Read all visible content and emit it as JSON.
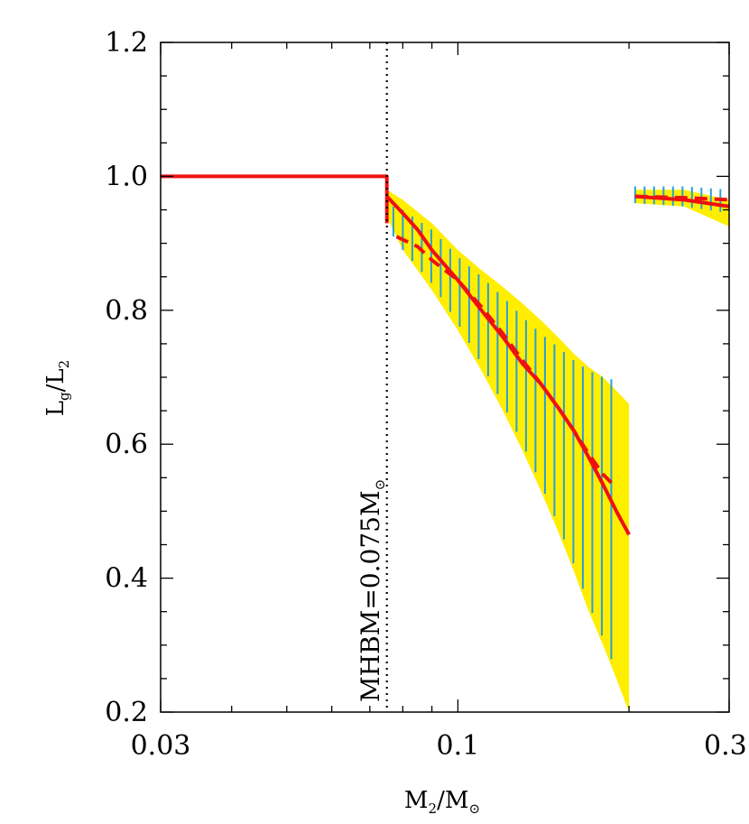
{
  "chart_data": {
    "type": "line",
    "xscale": "log",
    "xlim": [
      0.03,
      0.3
    ],
    "ylim": [
      0.2,
      1.2
    ],
    "xticks": [
      0.03,
      0.1,
      0.3
    ],
    "x_tick_labels": [
      "0.03",
      "0.1",
      "0.3"
    ],
    "yticks": [
      0.2,
      0.4,
      0.6,
      0.8,
      1.0,
      1.2
    ],
    "y_tick_labels": [
      "0.2",
      "0.4",
      "0.6",
      "0.8",
      "1.0",
      "1.2"
    ],
    "xlabel": {
      "main": "M",
      "sub": "2",
      "rest": "/M",
      "sub2": "⊙"
    },
    "ylabel": {
      "main": "L",
      "sub": "g",
      "rest": "/L",
      "sub2": "2"
    },
    "grid": false,
    "colors": {
      "band": "#ffee00",
      "hatch": "#2a9fd8",
      "line": "#ee1111",
      "axis": "#000000"
    },
    "vertical_line": {
      "x": 0.075,
      "style": "dotted",
      "label": {
        "main": "MHBM=0.075M",
        "sub": "⊙"
      }
    },
    "series": [
      {
        "style": "solid",
        "segments": [
          [
            [
              0.03,
              1.0
            ],
            [
              0.075,
              1.0
            ],
            [
              0.075,
              0.93
            ]
          ],
          [
            [
              0.075,
              0.97
            ],
            [
              0.08,
              0.945
            ],
            [
              0.085,
              0.92
            ],
            [
              0.09,
              0.89
            ],
            [
              0.1,
              0.845
            ],
            [
              0.11,
              0.8
            ],
            [
              0.12,
              0.76
            ],
            [
              0.13,
              0.72
            ],
            [
              0.14,
              0.69
            ],
            [
              0.15,
              0.655
            ],
            [
              0.16,
              0.62
            ],
            [
              0.17,
              0.58
            ],
            [
              0.18,
              0.54
            ],
            [
              0.19,
              0.5
            ],
            [
              0.2,
              0.465
            ]
          ],
          [
            [
              0.205,
              0.97
            ],
            [
              0.25,
              0.965
            ],
            [
              0.3,
              0.955
            ]
          ]
        ]
      },
      {
        "style": "dashed",
        "segments": [
          [
            [
              0.078,
              0.91
            ],
            [
              0.085,
              0.895
            ],
            [
              0.09,
              0.875
            ],
            [
              0.1,
              0.845
            ],
            [
              0.11,
              0.805
            ],
            [
              0.12,
              0.765
            ],
            [
              0.13,
              0.725
            ],
            [
              0.14,
              0.69
            ],
            [
              0.15,
              0.655
            ],
            [
              0.16,
              0.62
            ],
            [
              0.17,
              0.585
            ],
            [
              0.18,
              0.555
            ],
            [
              0.19,
              0.535
            ]
          ],
          [
            [
              0.205,
              0.97
            ],
            [
              0.25,
              0.968
            ],
            [
              0.3,
              0.965
            ]
          ]
        ]
      }
    ],
    "bands": [
      {
        "kind": "filled",
        "segments": [
          {
            "x": [
              0.075,
              0.08,
              0.09,
              0.1,
              0.11,
              0.12,
              0.13,
              0.14,
              0.15,
              0.16,
              0.17,
              0.18,
              0.19,
              0.2
            ],
            "upper": [
              0.98,
              0.965,
              0.93,
              0.89,
              0.86,
              0.835,
              0.81,
              0.785,
              0.76,
              0.735,
              0.715,
              0.7,
              0.68,
              0.66
            ],
            "lower": [
              0.94,
              0.89,
              0.83,
              0.77,
              0.71,
              0.65,
              0.59,
              0.53,
              0.47,
              0.41,
              0.35,
              0.3,
              0.25,
              0.2
            ]
          },
          {
            "x": [
              0.205,
              0.25,
              0.3
            ],
            "upper": [
              0.98,
              0.98,
              0.965
            ],
            "lower": [
              0.96,
              0.955,
              0.925
            ]
          }
        ]
      },
      {
        "kind": "hatched",
        "segments": [
          {
            "x": [
              0.077,
              0.08,
              0.09,
              0.1,
              0.11,
              0.12,
              0.13,
              0.14,
              0.15,
              0.16,
              0.17,
              0.18,
              0.19
            ],
            "upper": [
              0.955,
              0.95,
              0.92,
              0.88,
              0.85,
              0.82,
              0.79,
              0.765,
              0.745,
              0.725,
              0.71,
              0.7,
              0.695
            ],
            "lower": [
              0.91,
              0.89,
              0.84,
              0.78,
              0.72,
              0.66,
              0.6,
              0.54,
              0.48,
              0.42,
              0.36,
              0.31,
              0.26
            ]
          },
          {
            "x": [
              0.205,
              0.25,
              0.3
            ],
            "upper": [
              0.985,
              0.985,
              0.98
            ],
            "lower": [
              0.96,
              0.955,
              0.945
            ]
          }
        ]
      }
    ]
  }
}
